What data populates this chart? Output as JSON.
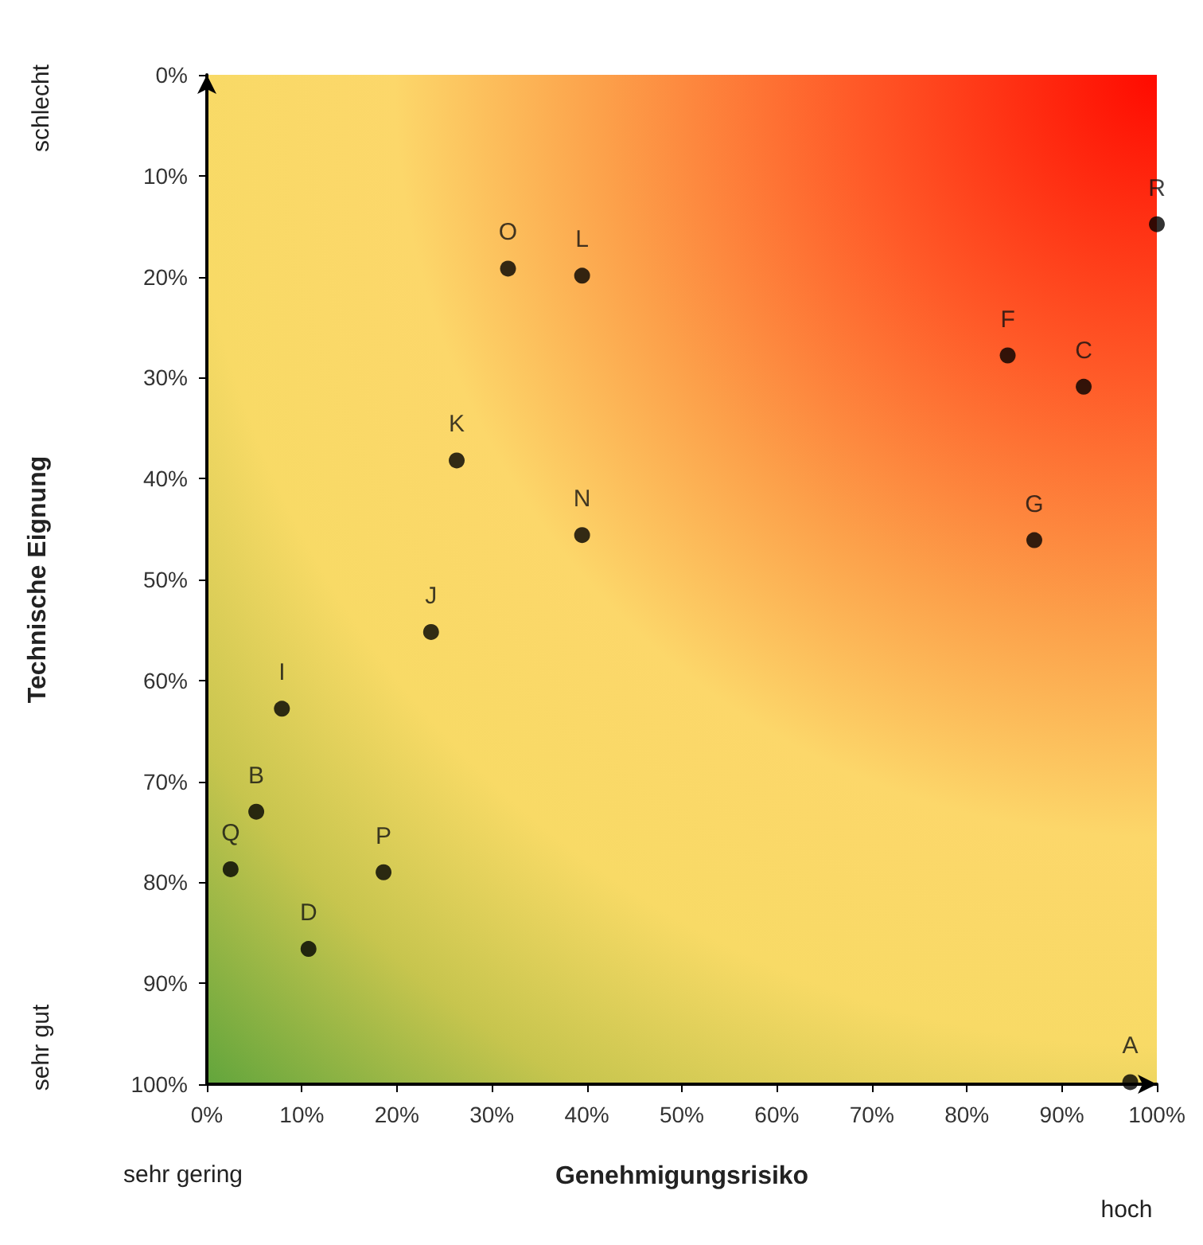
{
  "chart_data": {
    "type": "scatter",
    "xlabel": "Genehmigungsrisiko",
    "ylabel": "Technische Eignung",
    "annotations": [
      "schlecht",
      "sehr gut",
      "sehr gering",
      "hoch"
    ],
    "series": [
      {
        "name": "A",
        "color": "#000000",
        "x": [
          97.2
        ],
        "values": [
          99.8
        ]
      },
      {
        "name": "B",
        "color": "#000000",
        "x": [
          5.2
        ],
        "values": [
          73
        ]
      },
      {
        "name": "C",
        "color": "#000000",
        "x": [
          92.3
        ],
        "values": [
          30.9
        ]
      },
      {
        "name": "D",
        "color": "#000000",
        "x": [
          10.7
        ],
        "values": [
          86.6
        ]
      },
      {
        "name": "F",
        "color": "#000000",
        "x": [
          84.3
        ],
        "values": [
          27.8
        ]
      },
      {
        "name": "G",
        "color": "#000000",
        "x": [
          87.1
        ],
        "values": [
          46.1
        ]
      },
      {
        "name": "I",
        "color": "#000000",
        "x": [
          7.9
        ],
        "values": [
          62.8
        ]
      },
      {
        "name": "J",
        "color": "#000000",
        "x": [
          23.6
        ],
        "values": [
          55.2
        ]
      },
      {
        "name": "K",
        "color": "#000000",
        "x": [
          26.3
        ],
        "values": [
          38.2
        ]
      },
      {
        "name": "L",
        "color": "#000000",
        "x": [
          39.5
        ],
        "values": [
          19.9
        ]
      },
      {
        "name": "N",
        "color": "#000000",
        "x": [
          39.5
        ],
        "values": [
          45.6
        ]
      },
      {
        "name": "O",
        "color": "#000000",
        "x": [
          31.7
        ],
        "values": [
          19.2
        ]
      },
      {
        "name": "P",
        "color": "#000000",
        "x": [
          18.6
        ],
        "values": [
          79
        ]
      },
      {
        "name": "Q",
        "color": "#000000",
        "x": [
          2.5
        ],
        "values": [
          78.7
        ]
      },
      {
        "name": "R",
        "color": "#000000",
        "x": [
          100
        ],
        "values": [
          14.8
        ]
      }
    ],
    "xlim": [
      0,
      100
    ],
    "xticks": [
      {
        "value": 0,
        "label": "0%"
      },
      {
        "value": 10,
        "label": "10%"
      },
      {
        "value": 20,
        "label": "20%"
      },
      {
        "value": 30,
        "label": "30%"
      },
      {
        "value": 40,
        "label": "40%"
      },
      {
        "value": 50,
        "label": "50%"
      },
      {
        "value": 60,
        "label": "60%"
      },
      {
        "value": 70,
        "label": "70%"
      },
      {
        "value": 80,
        "label": "80%"
      },
      {
        "value": 90,
        "label": "90%"
      },
      {
        "value": 100,
        "label": "100%"
      }
    ],
    "ylim": [
      100,
      0
    ],
    "yticks": [
      {
        "value": 0,
        "label": "0%"
      },
      {
        "value": 10,
        "label": "10%"
      },
      {
        "value": 20,
        "label": "20%"
      },
      {
        "value": 30,
        "label": "30%"
      },
      {
        "value": 40,
        "label": "40%"
      },
      {
        "value": 50,
        "label": "50%"
      },
      {
        "value": 60,
        "label": "60%"
      },
      {
        "value": 70,
        "label": "70%"
      },
      {
        "value": 80,
        "label": "80%"
      },
      {
        "value": 90,
        "label": "90%"
      },
      {
        "value": 100,
        "label": "100%"
      }
    ],
    "grid": false,
    "legend": false,
    "marker": "circle"
  }
}
